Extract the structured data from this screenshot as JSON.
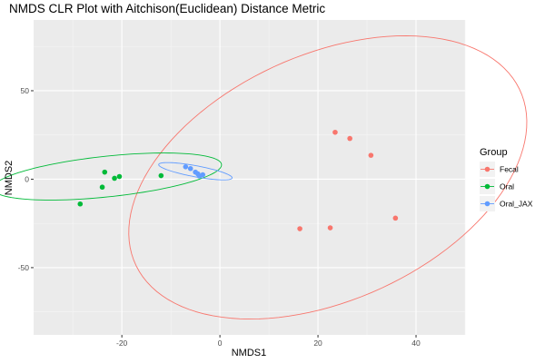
{
  "chart_data": {
    "type": "scatter",
    "title": "NMDS CLR Plot with Aitchison(Euclidean) Distance Metric",
    "xlabel": "NMDS1",
    "ylabel": "NMDS2",
    "xlim": [
      -38,
      50
    ],
    "ylim": [
      -88,
      90
    ],
    "x_ticks": [
      -20,
      0,
      20,
      40
    ],
    "y_ticks": [
      -50,
      0,
      50
    ],
    "x_tick_labels": [
      "-20",
      "0",
      "20",
      "40"
    ],
    "y_tick_labels": [
      "-50",
      "0",
      "50"
    ],
    "grid": true,
    "legend": {
      "title": "Group",
      "position": "right"
    },
    "series": [
      {
        "name": "Fecal",
        "color": "#F8766D",
        "points": [
          {
            "x": 23.5,
            "y": 26.5
          },
          {
            "x": 26.5,
            "y": 23
          },
          {
            "x": 30.8,
            "y": 13.5
          },
          {
            "x": 35.8,
            "y": -22
          },
          {
            "x": 22.5,
            "y": -27.5
          },
          {
            "x": 16.3,
            "y": -28
          }
        ],
        "ellipse": {
          "cx": 22,
          "cy": 1,
          "rx": 36.5,
          "ry": 82,
          "angle_deg": -14
        }
      },
      {
        "name": "Oral",
        "color": "#00BA38",
        "points": [
          {
            "x": -28.5,
            "y": -14
          },
          {
            "x": -23.5,
            "y": 4
          },
          {
            "x": -24,
            "y": -4.5
          },
          {
            "x": -21.5,
            "y": 0.5
          },
          {
            "x": -20.5,
            "y": 1.5
          },
          {
            "x": -12,
            "y": 2
          }
        ],
        "ellipse": {
          "cx": -23,
          "cy": 1.5,
          "rx": 24.5,
          "ry": 11,
          "angle_deg": 20
        }
      },
      {
        "name": "Oral_JAX",
        "color": "#619CFF",
        "points": [
          {
            "x": -7,
            "y": 7
          },
          {
            "x": -6,
            "y": 6
          },
          {
            "x": -5,
            "y": 4
          },
          {
            "x": -4.5,
            "y": 3
          },
          {
            "x": -3.5,
            "y": 2.5
          },
          {
            "x": -4.2,
            "y": 1.8
          }
        ],
        "ellipse": {
          "cx": -5,
          "cy": 4.5,
          "rx": 8.5,
          "ry": 2.8,
          "angle_deg": -30
        }
      }
    ]
  }
}
